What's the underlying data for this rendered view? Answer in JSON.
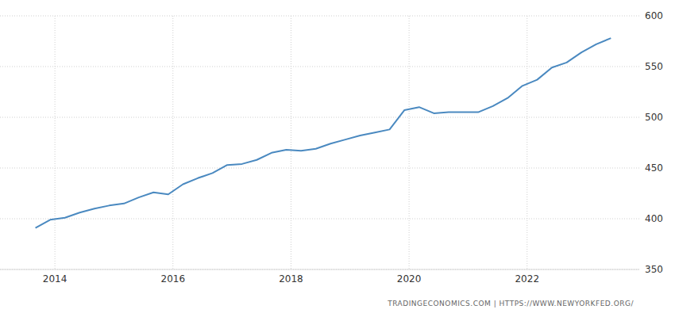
{
  "chart_data": {
    "type": "line",
    "source": "TRADINGECONOMICS.COM  |  HTTPS://WWW.NEWYORKFED.ORG/",
    "x": [
      2013.67,
      2013.92,
      2014.17,
      2014.42,
      2014.67,
      2014.92,
      2015.17,
      2015.42,
      2015.67,
      2015.92,
      2016.17,
      2016.42,
      2016.67,
      2016.92,
      2017.17,
      2017.42,
      2017.67,
      2017.92,
      2018.17,
      2018.42,
      2018.67,
      2018.92,
      2019.17,
      2019.42,
      2019.67,
      2019.92,
      2020.17,
      2020.42,
      2020.67,
      2020.92,
      2021.17,
      2021.42,
      2021.67,
      2021.92,
      2022.17,
      2022.42,
      2022.67,
      2022.92,
      2023.17,
      2023.42
    ],
    "values": [
      391,
      399,
      401,
      406,
      410,
      413,
      415,
      421,
      426,
      424,
      434,
      440,
      445,
      453,
      454,
      458,
      465,
      468,
      467,
      469,
      474,
      478,
      482,
      485,
      488,
      507,
      510,
      504,
      505,
      505,
      505,
      511,
      519,
      531,
      537,
      549,
      554,
      564,
      572,
      578
    ],
    "color": "#4a89c0",
    "xlim": [
      2013.07,
      2023.9
    ],
    "xticks": [
      2014,
      2016,
      2018,
      2020,
      2022
    ],
    "ylim": [
      350,
      600
    ],
    "yticks": [
      350,
      400,
      450,
      500,
      550,
      600
    ],
    "grid": true
  }
}
